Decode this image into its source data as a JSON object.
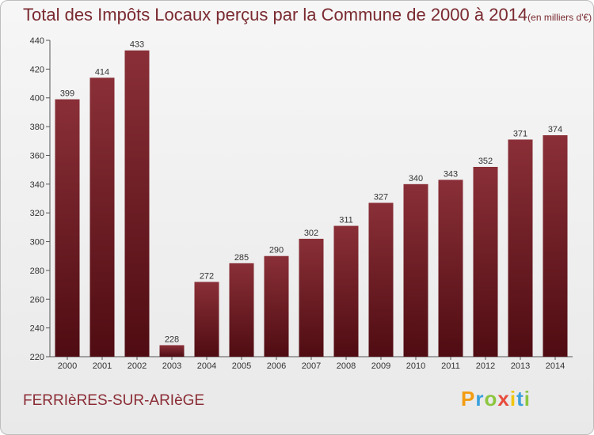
{
  "header": {
    "title": "Total des Impôts Locaux perçus par la Commune de 2000 à 2014",
    "unit": "(en milliers d'€)"
  },
  "footer": {
    "commune": "FERRIèRES-SUR-ARIèGE"
  },
  "brand": {
    "letters": [
      "P",
      "r",
      "o",
      "x",
      "i",
      "t",
      "i"
    ],
    "colors": [
      "#f39c12",
      "#3aa0dd",
      "#8cc63f",
      "#e74c3c",
      "#f1c40f",
      "#3aa0dd",
      "#8cc63f"
    ]
  },
  "chart_data": {
    "type": "bar",
    "title": "Total des Impôts Locaux perçus par la Commune de 2000 à 2014",
    "xlabel": "",
    "ylabel": "(en milliers d'€)",
    "categories": [
      "2000",
      "2001",
      "2002",
      "2003",
      "2004",
      "2005",
      "2006",
      "2007",
      "2008",
      "2009",
      "2010",
      "2011",
      "2012",
      "2013",
      "2014"
    ],
    "values": [
      399,
      414,
      433,
      228,
      272,
      285,
      290,
      302,
      311,
      327,
      340,
      343,
      352,
      371,
      374
    ],
    "ylim": [
      220,
      440
    ],
    "yticks": [
      220,
      240,
      260,
      280,
      300,
      320,
      340,
      360,
      380,
      400,
      420,
      440
    ],
    "grid": false,
    "bar_color": "#7d2029"
  }
}
